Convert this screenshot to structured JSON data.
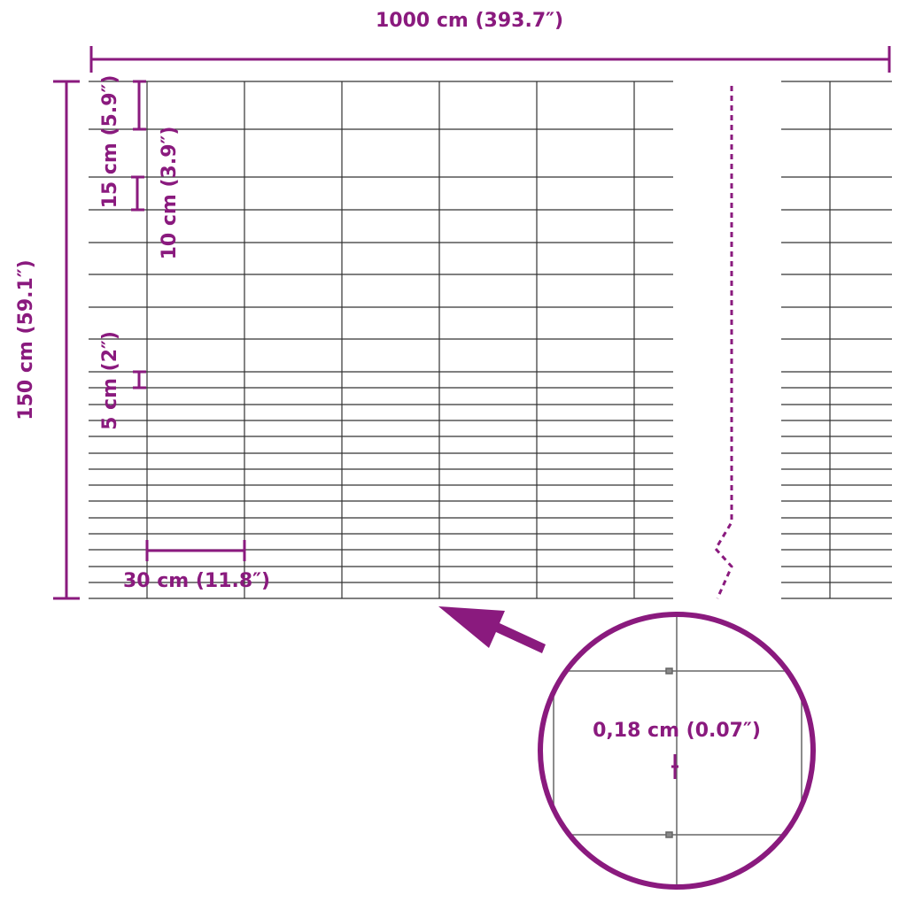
{
  "dimensions": {
    "width": "1000 cm (393.7″)",
    "height": "150 cm (59.1″)",
    "top_spacing": "15 cm (5.9″)",
    "middle_spacing": "10 cm (3.9″)",
    "bottom_spacing": "5 cm (2″)",
    "mesh_width": "30 cm (11.8″)",
    "wire_diameter": "0,18 cm (0.07″)"
  }
}
